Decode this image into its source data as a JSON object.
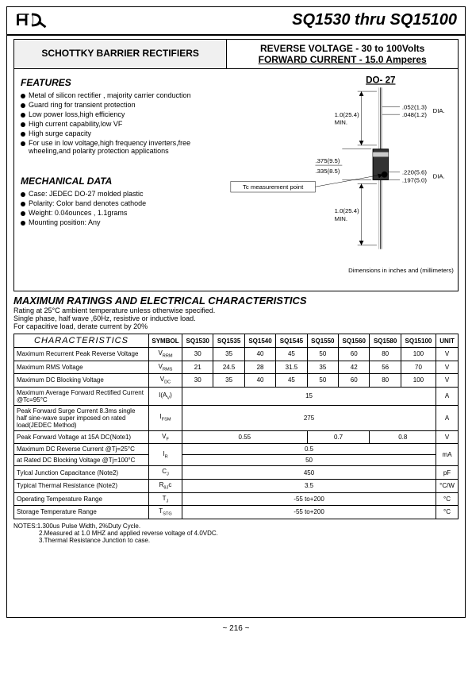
{
  "header": {
    "title": "SQ1530 thru SQ15100"
  },
  "top": {
    "left": "SCHOTTKY BARRIER RECTIFIERS",
    "right1": "REVERSE VOLTAGE  - 30 to 100Volts",
    "right2": "FORWARD CURRENT - 15.0 Amperes"
  },
  "features": {
    "heading": "FEATURES",
    "items": [
      "Metal of silicon rectifier , majority carrier conduction",
      "Guard ring for transient protection",
      "Low power loss,high efficiency",
      "High current capability,low VF",
      "High surge capacity",
      "For use in low voltage,high frequency inverters,free wheeling,and polarity protection applications"
    ]
  },
  "mech": {
    "heading": "MECHANICAL DATA",
    "items": [
      "Case: JEDEC DO-27 molded plastic",
      "Polarity:  Color band denotes cathode",
      "Weight:  0.04ounces , 1.1grams",
      "Mounting position: Any"
    ]
  },
  "diagram": {
    "pkg": "DO- 27",
    "d052": ".052(1.3)",
    "d048": ".048(1.2)",
    "dia": "DIA.",
    "min1": "1.0(25.4)\nMIN.",
    "d375": ".375(9.5)",
    "d335": ".335(8.5)",
    "d220": ".220(5.6)",
    "d197": ".197(5.0)",
    "min2": "1.0(25.4)\nMIN.",
    "tc": "Tc measurement point",
    "caption": "Dimensions in inches and (millimeters)"
  },
  "maxratings": {
    "heading": "MAXIMUM RATINGS AND ELECTRICAL CHARACTERISTICS",
    "l1": "Rating at 25°C  ambient temperature unless otherwise specified.",
    "l2": "Single phase, half wave ,60Hz, resistive or inductive load.",
    "l3": "For capacitive load, derate current by 20%"
  },
  "table": {
    "header": [
      "CHARACTERISTICS",
      "SYMBOL",
      "SQ1530",
      "SQ1535",
      "SQ1540",
      "SQ1545",
      "SQ1550",
      "SQ1560",
      "SQ1580",
      "SQ15100",
      "UNIT"
    ],
    "rows": [
      {
        "c": "Maximum Recurrent Peak Reverse Voltage",
        "s": "VRRM",
        "v": [
          "30",
          "35",
          "40",
          "45",
          "50",
          "60",
          "80",
          "100"
        ],
        "u": "V",
        "span": false
      },
      {
        "c": "Maximum RMS Voltage",
        "s": "VRMS",
        "v": [
          "21",
          "24.5",
          "28",
          "31.5",
          "35",
          "42",
          "56",
          "70"
        ],
        "u": "V",
        "span": false
      },
      {
        "c": "Maximum DC Blocking Voltage",
        "s": "VDC",
        "v": [
          "30",
          "35",
          "40",
          "45",
          "50",
          "60",
          "80",
          "100"
        ],
        "u": "V",
        "span": false
      },
      {
        "c": "Maximum Average Forward Rectified Current            @Tc=95°C",
        "s": "I(AV)",
        "v": [
          "15"
        ],
        "u": "A",
        "span": true
      },
      {
        "c": "Peak Forward Surge Current 8.3ms single half sine-wave super imposed on rated load(JEDEC Method)",
        "s": "IFSM",
        "v": [
          "275"
        ],
        "u": "A",
        "span": true
      },
      {
        "c": "Peak Forward Voltage at 15A DC(Note1)",
        "s": "VF",
        "v": [
          "0.55",
          "0.7",
          "0.8"
        ],
        "u": "V",
        "span": "vf"
      },
      {
        "c": "Maximum DC Reverse Current  @Tj=25°C",
        "s": "IR",
        "v": [
          "0.5"
        ],
        "u": "mA",
        "span": "ir1"
      },
      {
        "c": "at Rated DC Blocking Voltage  @Tj=100°C",
        "s": "",
        "v": [
          "50"
        ],
        "u": "",
        "span": "ir2"
      },
      {
        "c": "Tylcal Junction  Capacitance (Note2)",
        "s": "CJ",
        "v": [
          "450"
        ],
        "u": "pF",
        "span": true
      },
      {
        "c": "Typical Thermal Resistance (Note2)",
        "s": "RθJc",
        "v": [
          "3.5"
        ],
        "u": "°C/W",
        "span": true
      },
      {
        "c": "Operating Temperature Range",
        "s": "TJ",
        "v": [
          "-55 to+200"
        ],
        "u": "°C",
        "span": true
      },
      {
        "c": "Storage Temperature Range",
        "s": "TSTG",
        "v": [
          "-55 to+200"
        ],
        "u": "°C",
        "span": true
      }
    ]
  },
  "notes": {
    "n1": "NOTES:1.300us Pulse Width, 2%Duty Cycle.",
    "n2": "2.Measured at 1.0 MHZ and applied reverse voltage of 4.0VDC.",
    "n3": "3.Thermal Resistance Junction to case."
  },
  "pagenum": "~ 216 ~"
}
